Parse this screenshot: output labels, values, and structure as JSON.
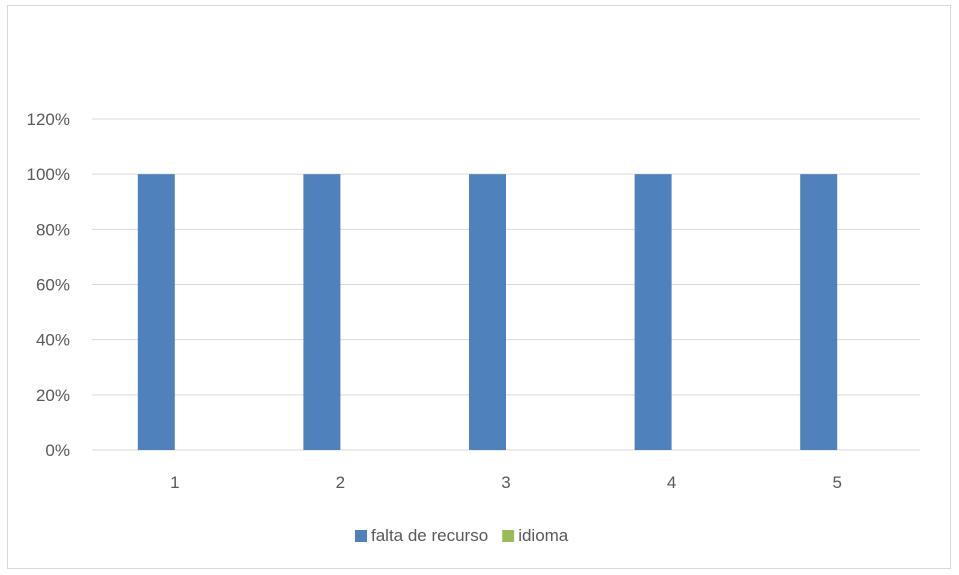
{
  "chart_data": {
    "type": "bar",
    "title": "",
    "xlabel": "",
    "ylabel": "",
    "categories": [
      "1",
      "2",
      "3",
      "4",
      "5"
    ],
    "ylim": [
      0,
      1.2
    ],
    "yticks": [
      0,
      0.2,
      0.4,
      0.6,
      0.8,
      1.0,
      1.2
    ],
    "ytick_labels": [
      "0%",
      "20%",
      "40%",
      "60%",
      "80%",
      "100%",
      "120%"
    ],
    "grid": true,
    "legend_position": "bottom",
    "series": [
      {
        "name": "falta de recurso",
        "color": "#4f81bd",
        "values": [
          1.0,
          1.0,
          1.0,
          1.0,
          1.0
        ]
      },
      {
        "name": "idioma",
        "color": "#9bbb59",
        "values": [
          0,
          0,
          0,
          0,
          0
        ]
      }
    ]
  }
}
